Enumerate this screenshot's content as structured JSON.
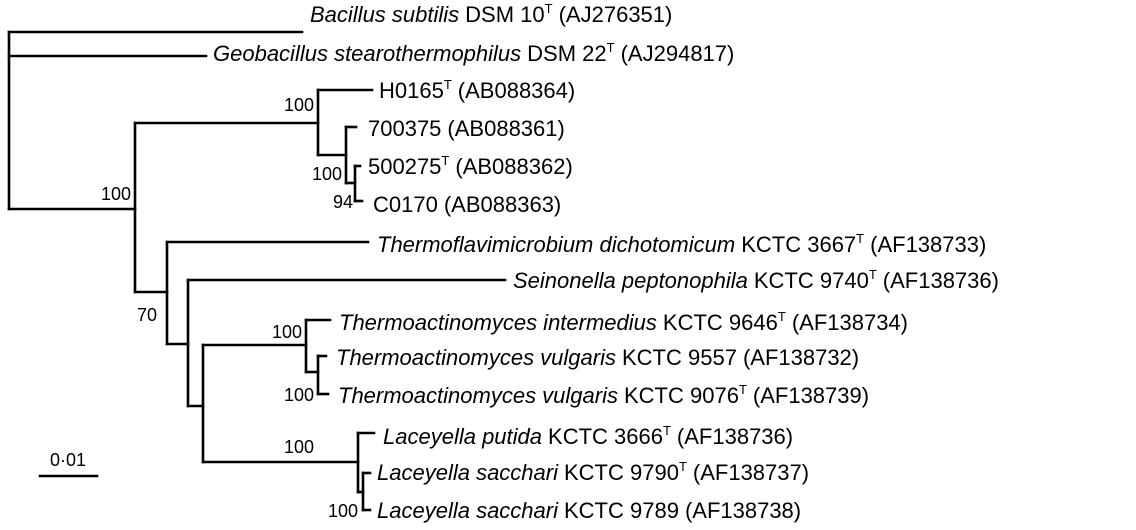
{
  "tree": {
    "taxa": [
      {
        "id": "bsub",
        "genus": "Bacillus subtilis",
        "strain": "DSM 10",
        "type_strain": true,
        "accession": "(AJ276351)"
      },
      {
        "id": "gstear",
        "genus": "Geobacillus stearothermophilus",
        "strain": "DSM 22",
        "type_strain": true,
        "accession": "(AJ294817)"
      },
      {
        "id": "h0165",
        "genus": "",
        "strain": "H0165",
        "type_strain": true,
        "accession": "(AB088364)"
      },
      {
        "id": "s700375",
        "genus": "",
        "strain": "700375",
        "type_strain": false,
        "accession": "(AB088361)"
      },
      {
        "id": "s500275",
        "genus": "",
        "strain": "500275",
        "type_strain": true,
        "accession": "(AB088362)"
      },
      {
        "id": "c0170",
        "genus": "",
        "strain": "C0170",
        "type_strain": false,
        "accession": "(AB088363)"
      },
      {
        "id": "tdich",
        "genus": "Thermoflavimicrobium dichotomicum",
        "strain": "KCTC 3667",
        "type_strain": true,
        "accession": "(AF138733)"
      },
      {
        "id": "spept",
        "genus": "Seinonella peptonophila",
        "strain": "KCTC 9740",
        "type_strain": true,
        "accession": "(AF138736)"
      },
      {
        "id": "tinter",
        "genus": "Thermoactinomyces intermedius",
        "strain": "KCTC 9646",
        "type_strain": true,
        "accession": "(AF138734)"
      },
      {
        "id": "tvulg1",
        "genus": "Thermoactinomyces vulgaris",
        "strain": "KCTC 9557",
        "type_strain": false,
        "accession": "(AF138732)"
      },
      {
        "id": "tvulg2",
        "genus": "Thermoactinomyces vulgaris",
        "strain": "KCTC 9076",
        "type_strain": true,
        "accession": "(AF138739)"
      },
      {
        "id": "lput",
        "genus": "Laceyella putida",
        "strain": "KCTC 3666",
        "type_strain": true,
        "accession": "(AF138736)"
      },
      {
        "id": "lsac1",
        "genus": "Laceyella sacchari",
        "strain": "KCTC 9790",
        "type_strain": true,
        "accession": "(AF138737)"
      },
      {
        "id": "lsac2",
        "genus": "Laceyella sacchari",
        "strain": "KCTC 9789",
        "type_strain": false,
        "accession": "(AF138738)"
      }
    ],
    "type_marker": "T",
    "bootstrap": {
      "n1": "100",
      "n1a": "100",
      "n1b": "100",
      "n1c": "94",
      "n2": "70",
      "n3": "100",
      "n3a": "100",
      "n4": "100",
      "n4a": "100"
    },
    "scale_bar": {
      "label": "0·01",
      "value": 0.01
    }
  }
}
